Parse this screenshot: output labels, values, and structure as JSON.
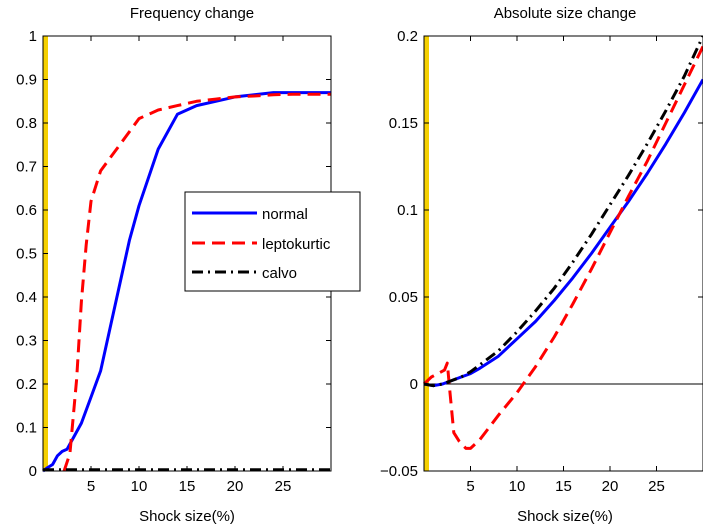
{
  "chart_data": [
    {
      "type": "line",
      "title": "Frequency change",
      "xlabel": "Shock size(%)",
      "ylabel": "",
      "xlim": [
        0,
        30
      ],
      "ylim": [
        0,
        1
      ],
      "xticks": [
        5,
        10,
        15,
        20,
        25
      ],
      "xtick_labels": [
        "5",
        "10",
        "15",
        "20",
        "25"
      ],
      "yticks": [
        0,
        0.1,
        0.2,
        0.3,
        0.4,
        0.5,
        0.6,
        0.7,
        0.8,
        0.9,
        1
      ],
      "ytick_labels": [
        "0",
        "0.1",
        "0.2",
        "0.3",
        "0.4",
        "0.5",
        "0.6",
        "0.7",
        "0.8",
        "0.9",
        "1"
      ],
      "highlight_band": {
        "x0": 0,
        "x1": 0.4,
        "color": "#f5d000"
      },
      "legend": {
        "placement": "inside-right",
        "entries": [
          "normal",
          "leptokurtic",
          "calvo"
        ]
      },
      "series": [
        {
          "name": "normal",
          "color": "#0000ff",
          "dash": "solid",
          "x": [
            0,
            0.5,
            1,
            1.5,
            2,
            2.5,
            3,
            4,
            5,
            6,
            7,
            8,
            9,
            10,
            12,
            14,
            16,
            18,
            20,
            22,
            24,
            26,
            28,
            30
          ],
          "y": [
            0,
            0.008,
            0.015,
            0.035,
            0.045,
            0.05,
            0.07,
            0.11,
            0.17,
            0.23,
            0.33,
            0.43,
            0.53,
            0.61,
            0.74,
            0.82,
            0.84,
            0.85,
            0.86,
            0.865,
            0.87,
            0.87,
            0.87,
            0.87
          ]
        },
        {
          "name": "leptokurtic",
          "color": "#ff0000",
          "dash": "dashed",
          "x": [
            2.2,
            2.8,
            3.5,
            4,
            4.5,
            5,
            6,
            7,
            8,
            9,
            10,
            12,
            14,
            16,
            18,
            20,
            22,
            24,
            26,
            28,
            30
          ],
          "y": [
            0,
            0.04,
            0.21,
            0.39,
            0.52,
            0.62,
            0.69,
            0.72,
            0.75,
            0.78,
            0.81,
            0.83,
            0.84,
            0.85,
            0.855,
            0.86,
            0.862,
            0.865,
            0.866,
            0.866,
            0.866
          ]
        },
        {
          "name": "calvo",
          "color": "#000000",
          "dash": "dashdot",
          "x": [
            0,
            30
          ],
          "y": [
            0.003,
            0.003
          ]
        }
      ]
    },
    {
      "type": "line",
      "title": "Absolute size change",
      "xlabel": "Shock size(%)",
      "ylabel": "",
      "xlim": [
        0,
        30
      ],
      "ylim": [
        -0.05,
        0.2
      ],
      "xticks": [
        5,
        10,
        15,
        20,
        25
      ],
      "xtick_labels": [
        "5",
        "10",
        "15",
        "20",
        "25"
      ],
      "yticks": [
        -0.05,
        0,
        0.05,
        0.1,
        0.15,
        0.2
      ],
      "ytick_labels": [
        "−0.05",
        "0",
        "0.05",
        "0.1",
        "0.15",
        "0.2"
      ],
      "highlight_band": {
        "x0": 0,
        "x1": 0.4,
        "color": "#f5d000"
      },
      "zero_line": true,
      "series": [
        {
          "name": "normal",
          "color": "#0000ff",
          "dash": "solid",
          "x": [
            0,
            1,
            2,
            3,
            4,
            5,
            6,
            8,
            10,
            12,
            14,
            16,
            18,
            20,
            22,
            24,
            26,
            28,
            30
          ],
          "y": [
            0,
            -0.001,
            0,
            0.002,
            0.004,
            0.006,
            0.009,
            0.016,
            0.026,
            0.036,
            0.048,
            0.061,
            0.075,
            0.09,
            0.105,
            0.121,
            0.138,
            0.156,
            0.175
          ]
        },
        {
          "name": "leptokurtic",
          "color": "#ff0000",
          "dash": "dashed",
          "x": [
            0,
            0.8,
            1.5,
            2.2,
            2.5,
            2.8,
            3.2,
            3.8,
            4.5,
            5,
            6,
            8,
            10,
            12,
            14,
            16,
            18,
            20,
            22,
            24,
            26,
            28,
            30
          ],
          "y": [
            0,
            0.004,
            0.006,
            0.008,
            0.012,
            -0.005,
            -0.028,
            -0.033,
            -0.037,
            -0.037,
            -0.032,
            -0.018,
            -0.005,
            0.01,
            0.027,
            0.046,
            0.066,
            0.087,
            0.108,
            0.128,
            0.15,
            0.172,
            0.194
          ]
        },
        {
          "name": "calvo",
          "color": "#000000",
          "dash": "dashdot",
          "x": [
            0,
            1,
            2,
            3,
            4,
            5,
            6,
            8,
            10,
            12,
            14,
            16,
            18,
            20,
            22,
            24,
            26,
            28,
            30
          ],
          "y": [
            0,
            -0.001,
            0,
            0.002,
            0.004,
            0.007,
            0.011,
            0.019,
            0.03,
            0.042,
            0.055,
            0.07,
            0.086,
            0.103,
            0.12,
            0.138,
            0.157,
            0.177,
            0.2
          ]
        }
      ]
    }
  ]
}
